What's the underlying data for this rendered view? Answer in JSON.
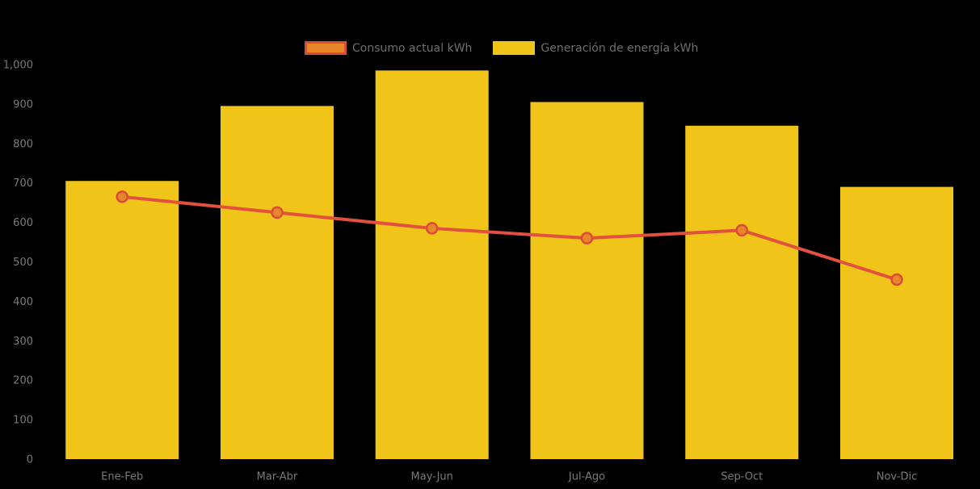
{
  "page": {
    "background": "#000000",
    "title": ""
  },
  "legend": {
    "position": "top",
    "items": [
      {
        "label": "Consumo actual kWh",
        "swatch_fill": "#E6882A",
        "swatch_border": "#DC4A38"
      },
      {
        "label": "Generación de energía kWh",
        "swatch_fill": "#F0C419",
        "swatch_border": "#F0C419"
      }
    ]
  },
  "chart_data": {
    "type": "bar",
    "title": "",
    "xlabel": "",
    "ylabel": "",
    "categories": [
      "Ene-Feb",
      "Mar-Abr",
      "May-Jun",
      "Jul-Ago",
      "Sep-Oct",
      "Nov-Dic"
    ],
    "series": [
      {
        "name": "Generación de energía kWh",
        "render": "bar",
        "color": "#F0C419",
        "values": [
          705,
          895,
          985,
          905,
          845,
          690
        ]
      },
      {
        "name": "Consumo actual kWh",
        "render": "line",
        "color": "#E2513E",
        "marker_fill": "#E6882A",
        "marker_stroke": "#DC4A38",
        "values": [
          665,
          625,
          585,
          560,
          580,
          455
        ]
      }
    ],
    "ylim": [
      0,
      1000
    ],
    "ytick_interval": 100,
    "ytick_labels": [
      "0",
      "100",
      "200",
      "300",
      "400",
      "500",
      "600",
      "700",
      "800",
      "900",
      "1,000"
    ],
    "grid": false,
    "legend_position": "top",
    "axis_label_color": "#7A7A7A"
  }
}
